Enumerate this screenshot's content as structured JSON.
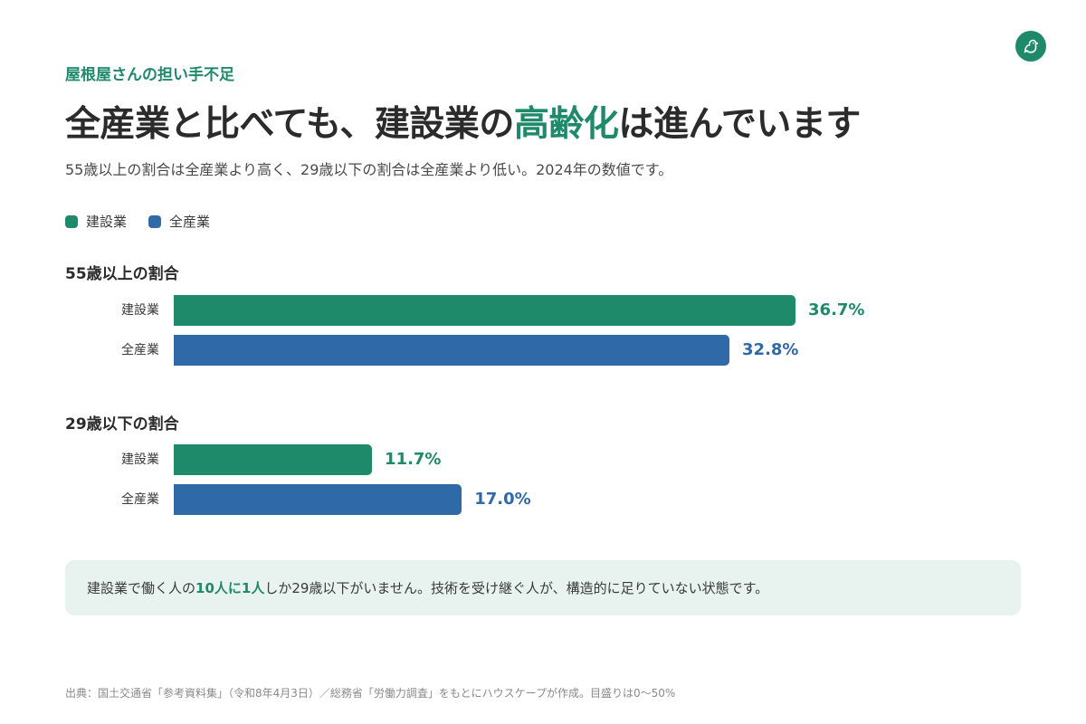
{
  "header": {
    "eyebrow": "屋根屋さんの担い手不足",
    "title_before": "全産業と比べても、建設業の",
    "title_highlight": "高齢化",
    "title_after": "は進んでいます",
    "subtitle": "55歳以上の割合は全産業より高く、29歳以下の割合は全産業より低い。2024年の数値です。"
  },
  "logo": {
    "icon": "bird-logo-icon"
  },
  "colors": {
    "construction": "#1f8a6a",
    "all_industries": "#2f69a8"
  },
  "chart_data": {
    "type": "bar",
    "orientation": "horizontal",
    "legend": [
      "建設業",
      "全産業"
    ],
    "legend_placement": "top-left",
    "xlim": [
      0,
      50
    ],
    "unit": "%",
    "groups": [
      {
        "title": "55歳以上の割合",
        "rows": [
          {
            "label": "建設業",
            "value": 36.7,
            "display": "36.7%"
          },
          {
            "label": "全産業",
            "value": 32.8,
            "display": "32.8%"
          }
        ]
      },
      {
        "title": "29歳以下の割合",
        "rows": [
          {
            "label": "建設業",
            "value": 11.7,
            "display": "11.7%"
          },
          {
            "label": "全産業",
            "value": 17.0,
            "display": "17.0%"
          }
        ]
      }
    ]
  },
  "callout": {
    "text_before": "建設業で働く人の",
    "emphasis": "10人に1人",
    "text_after": "しか29歳以下がいません。技術を受け継ぐ人が、構造的に足りていない状態です。"
  },
  "source": "出典：国土交通省「参考資料集」（令和8年4月3日）／総務省「労働力調査」をもとにハウスケープが作成。目盛りは0〜50%"
}
